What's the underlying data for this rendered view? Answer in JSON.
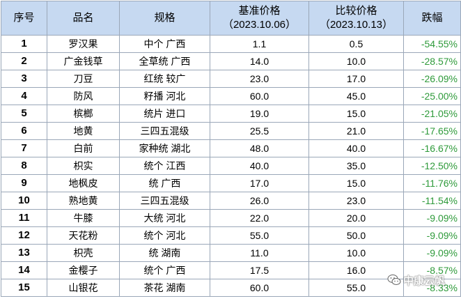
{
  "table": {
    "headers": {
      "rank": "序号",
      "name": "品名",
      "spec": "规格",
      "base_price": "基准价格",
      "base_date": "（2023.10.06）",
      "compare_price": "比较价格",
      "compare_date": "（2023.10.13）",
      "change": "跌幅"
    },
    "rows": [
      {
        "rank": "1",
        "name": "罗汉果",
        "spec": "中个 广西",
        "base": "1.1",
        "compare": "0.5",
        "change": "-54.55%"
      },
      {
        "rank": "2",
        "name": "广金钱草",
        "spec": "全草统 广西",
        "base": "14.0",
        "compare": "10.0",
        "change": "-28.57%"
      },
      {
        "rank": "3",
        "name": "刀豆",
        "spec": "红统 较广",
        "base": "23.0",
        "compare": "17.0",
        "change": "-26.09%"
      },
      {
        "rank": "4",
        "name": "防风",
        "spec": "籽播 河北",
        "base": "60.0",
        "compare": "45.0",
        "change": "-25.00%"
      },
      {
        "rank": "5",
        "name": "槟榔",
        "spec": "统片 进口",
        "base": "19.0",
        "compare": "15.0",
        "change": "-21.05%"
      },
      {
        "rank": "6",
        "name": "地黄",
        "spec": "三四五混级",
        "base": "25.5",
        "compare": "21.0",
        "change": "-17.65%"
      },
      {
        "rank": "7",
        "name": "白前",
        "spec": "家种统 湖北",
        "base": "48.0",
        "compare": "40.0",
        "change": "-16.67%"
      },
      {
        "rank": "8",
        "name": "枳实",
        "spec": "统个 江西",
        "base": "40.0",
        "compare": "35.0",
        "change": "-12.50%"
      },
      {
        "rank": "9",
        "name": "地枫皮",
        "spec": "统 广西",
        "base": "17.0",
        "compare": "15.0",
        "change": "-11.76%"
      },
      {
        "rank": "10",
        "name": "熟地黄",
        "spec": "三四五混级",
        "base": "26.0",
        "compare": "23.0",
        "change": "-11.54%"
      },
      {
        "rank": "11",
        "name": "牛膝",
        "spec": "大统 河北",
        "base": "22.0",
        "compare": "20.0",
        "change": "-9.09%"
      },
      {
        "rank": "12",
        "name": "天花粉",
        "spec": "统个 河北",
        "base": "55.0",
        "compare": "50.0",
        "change": "-9.09%"
      },
      {
        "rank": "13",
        "name": "枳壳",
        "spec": "统 湖南",
        "base": "11.0",
        "compare": "10.0",
        "change": "-9.09%"
      },
      {
        "rank": "14",
        "name": "金樱子",
        "spec": "统个 广西",
        "base": "17.5",
        "compare": "16.0",
        "change": "-8.57%"
      },
      {
        "rank": "15",
        "name": "山银花",
        "spec": "茶花 湖南",
        "base": "60.0",
        "compare": "55.0",
        "change": "-8.33%"
      }
    ]
  },
  "watermark": {
    "text": "中康云帆",
    "icon": "wechat-icon"
  },
  "colors": {
    "header_bg": "#c6d9f1",
    "border": "#9aa7b8",
    "change_text": "#2e9a3a"
  }
}
